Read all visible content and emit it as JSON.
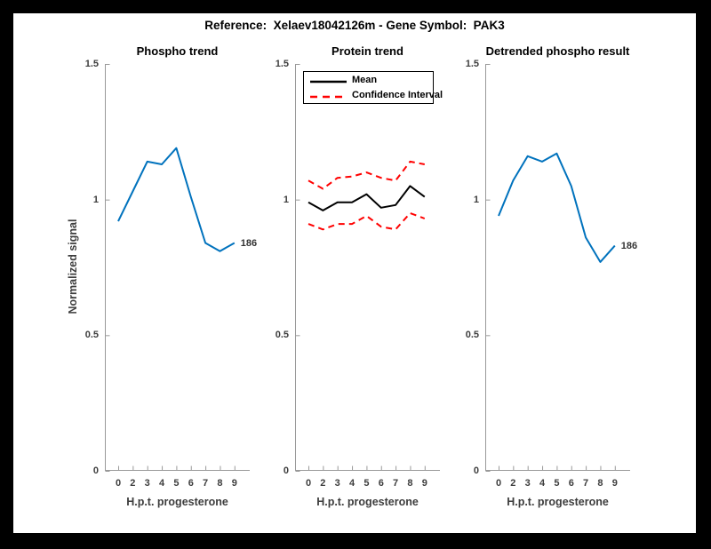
{
  "figure": {
    "title": "Reference:  Xelaev18042126m - Gene Symbol:  PAK3",
    "frame_color": "#000000",
    "background_color": "#ffffff"
  },
  "axes_style": {
    "axis_color": "#999999",
    "tick_label_color": "#3d3d3d",
    "blue": "#0072BD",
    "red": "#ff0000",
    "black": "#000000"
  },
  "chart_data": [
    {
      "type": "line",
      "title": "Phospho trend",
      "xlabel": "H.p.t. progesterone",
      "ylabel": "Normalized signal",
      "categories": [
        "0",
        "2",
        "3",
        "4",
        "5",
        "6",
        "7",
        "8",
        "9"
      ],
      "ylim": [
        0,
        1.5
      ],
      "y_ticks": [
        "0",
        "0.5",
        "1",
        "1.5"
      ],
      "grid": false,
      "legend": null,
      "end_label": "186",
      "series": [
        {
          "name": "Phospho trend",
          "color": "#0072BD",
          "style": "solid",
          "values": [
            0.92,
            1.03,
            1.14,
            1.13,
            1.19,
            1.01,
            0.84,
            0.81,
            0.84
          ]
        }
      ]
    },
    {
      "type": "line",
      "title": "Protein trend",
      "xlabel": "H.p.t. progesterone",
      "ylabel": "",
      "categories": [
        "0",
        "2",
        "3",
        "4",
        "5",
        "6",
        "7",
        "8",
        "9"
      ],
      "ylim": [
        0,
        1.5
      ],
      "y_ticks": [
        "0",
        "0.5",
        "1",
        "1.5"
      ],
      "grid": false,
      "legend": {
        "position": "top-left",
        "entries": [
          {
            "label": "Mean",
            "color": "#000000",
            "style": "solid"
          },
          {
            "label": "Confidence Interval",
            "color": "#ff0000",
            "style": "dashed"
          }
        ]
      },
      "end_label": null,
      "series": [
        {
          "name": "Mean",
          "color": "#000000",
          "style": "solid",
          "values": [
            0.99,
            0.96,
            0.99,
            0.99,
            1.02,
            0.97,
            0.98,
            1.05,
            1.01
          ]
        },
        {
          "name": "Confidence Interval (upper)",
          "color": "#ff0000",
          "style": "dashed",
          "values": [
            1.07,
            1.04,
            1.08,
            1.085,
            1.1,
            1.08,
            1.07,
            1.14,
            1.13
          ]
        },
        {
          "name": "Confidence Interval (lower)",
          "color": "#ff0000",
          "style": "dashed",
          "values": [
            0.91,
            0.89,
            0.91,
            0.91,
            0.94,
            0.9,
            0.89,
            0.95,
            0.93
          ]
        }
      ]
    },
    {
      "type": "line",
      "title": "Detrended phospho result",
      "xlabel": "H.p.t. progesterone",
      "ylabel": "",
      "categories": [
        "0",
        "2",
        "3",
        "4",
        "5",
        "6",
        "7",
        "8",
        "9"
      ],
      "ylim": [
        0,
        1.5
      ],
      "y_ticks": [
        "0",
        "0.5",
        "1",
        "1.5"
      ],
      "grid": false,
      "legend": null,
      "end_label": "186",
      "series": [
        {
          "name": "Detrended phospho",
          "color": "#0072BD",
          "style": "solid",
          "values": [
            0.94,
            1.07,
            1.16,
            1.14,
            1.17,
            1.05,
            0.86,
            0.77,
            0.83
          ]
        }
      ]
    }
  ]
}
